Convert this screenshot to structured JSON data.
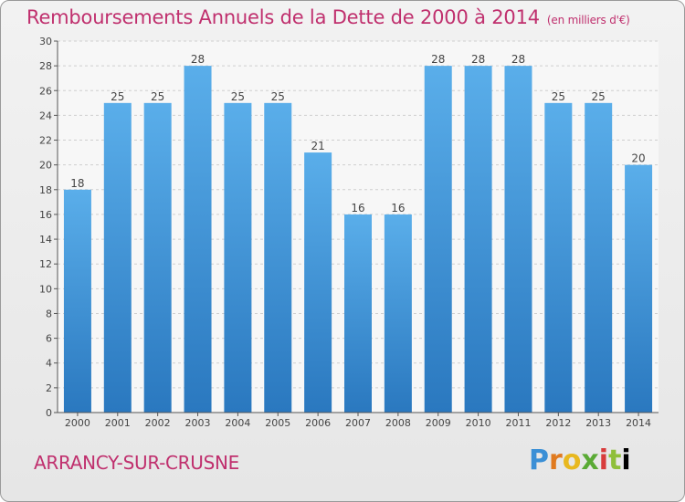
{
  "header": {
    "title": "Remboursements Annuels de la Dette de 2000 à 2014",
    "unit": "(en milliers d'€)"
  },
  "footer": {
    "commune": "ARRANCY-SUR-CRUSNE",
    "logo": [
      "P",
      "r",
      "o",
      "x",
      "i",
      "t",
      "i"
    ]
  },
  "colors": {
    "bar_top": "#5aaeea",
    "bar_bottom": "#2a78bf",
    "title": "#c0306e"
  },
  "chart_data": {
    "type": "bar",
    "title": "Remboursements Annuels de la Dette de 2000 à 2014",
    "xlabel": "",
    "ylabel": "",
    "categories": [
      "2000",
      "2001",
      "2002",
      "2003",
      "2004",
      "2005",
      "2006",
      "2007",
      "2008",
      "2009",
      "2010",
      "2011",
      "2012",
      "2013",
      "2014"
    ],
    "values": [
      18,
      25,
      25,
      28,
      25,
      25,
      21,
      16,
      16,
      28,
      28,
      28,
      25,
      25,
      20
    ],
    "ylim": [
      0,
      30
    ],
    "yticks": [
      0,
      2,
      4,
      6,
      8,
      10,
      12,
      14,
      16,
      18,
      20,
      22,
      24,
      26,
      28,
      30
    ],
    "grid": true
  }
}
